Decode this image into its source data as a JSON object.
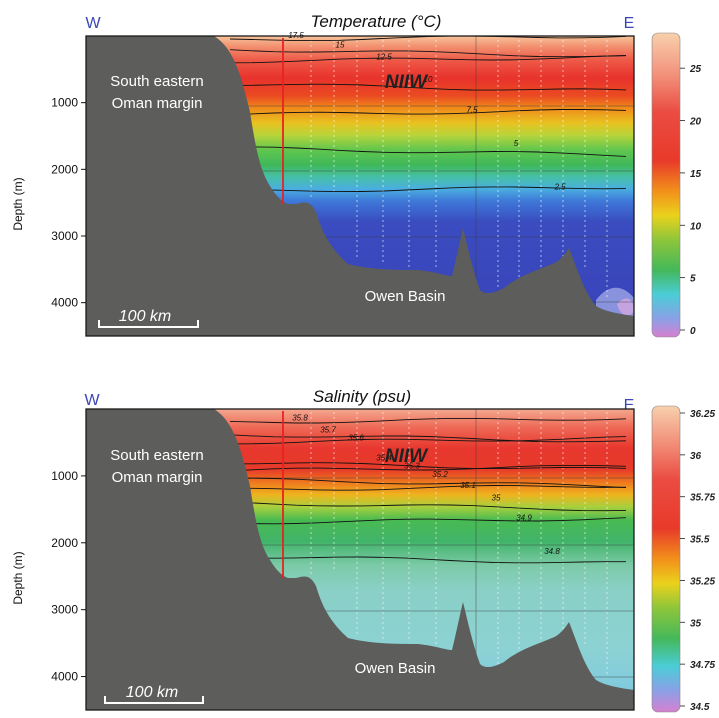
{
  "chart_data": [
    {
      "type": "heatmap",
      "title": "Temperature (°C)",
      "left_label": "W",
      "right_label": "E",
      "ylabel": "Depth (m)",
      "yticks": [
        1000,
        2000,
        3000,
        4000
      ],
      "ylim": [
        0,
        4500
      ],
      "y_inverted": true,
      "colorbar": {
        "ticks": [
          25,
          20,
          15,
          10,
          5,
          0
        ],
        "range": [
          0,
          27.5
        ]
      },
      "contours": [
        {
          "label": "17.5",
          "depth": 60
        },
        {
          "label": "15",
          "depth": 200
        },
        {
          "label": "12.5",
          "depth": 380
        },
        {
          "label": "10",
          "depth": 720
        },
        {
          "label": "7.5",
          "depth": 1180
        },
        {
          "label": "5",
          "depth": 1680
        },
        {
          "label": "2.5",
          "depth": 2330
        }
      ],
      "annotations": [
        "South eastern",
        "Oman margin",
        "NIIW",
        "Owen Basin"
      ],
      "scale_bar": "100 km"
    },
    {
      "type": "heatmap",
      "title": "Salinity (psu)",
      "left_label": "W",
      "right_label": "E",
      "ylabel": "Depth (m)",
      "yticks": [
        1000,
        2000,
        3000,
        4000
      ],
      "ylim": [
        0,
        4500
      ],
      "y_inverted": true,
      "colorbar": {
        "ticks": [
          36.25,
          36,
          35.75,
          35.5,
          35.25,
          35,
          34.75,
          34.5
        ],
        "range": [
          34.5,
          36.25
        ]
      },
      "contours": [
        {
          "label": "35.8",
          "depth": 200
        },
        {
          "label": "35.7",
          "depth": 380
        },
        {
          "label": "35.6",
          "depth": 500
        },
        {
          "label": "35.4",
          "depth": 800
        },
        {
          "label": "35.3",
          "depth": 920
        },
        {
          "label": "35.2",
          "depth": 1050
        },
        {
          "label": "35.1",
          "depth": 1210
        },
        {
          "label": "35",
          "depth": 1400
        },
        {
          "label": "34.9",
          "depth": 1700
        },
        {
          "label": "34.8",
          "depth": 2200
        }
      ],
      "annotations": [
        "South eastern",
        "Oman margin",
        "NIIW",
        "Owen Basin"
      ],
      "scale_bar": "100 km"
    }
  ]
}
